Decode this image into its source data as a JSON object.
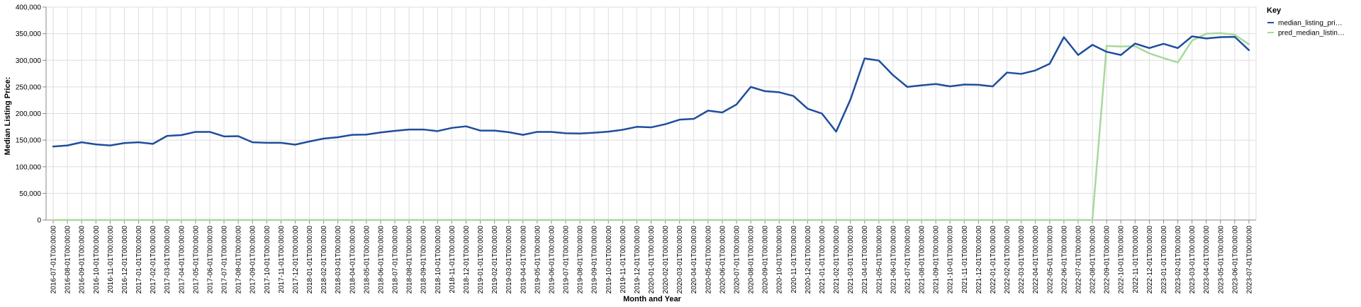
{
  "chart_data": {
    "type": "line",
    "xlabel": "Month and Year",
    "ylabel": "Median Listing Price:",
    "ylim": [
      0,
      400000
    ],
    "y_ticks": [
      "0",
      "50,000",
      "100,000",
      "150,000",
      "200,000",
      "250,000",
      "300,000",
      "350,000",
      "400,000"
    ],
    "grid": true,
    "legend": {
      "title": "Key",
      "position": "right",
      "entries": [
        "median_listing_pri…",
        "pred_median_listin…"
      ]
    },
    "x": [
      "2016-07-01T00:00:00",
      "2016-08-01T00:00:00",
      "2016-09-01T00:00:00",
      "2016-10-01T00:00:00",
      "2016-11-01T00:00:00",
      "2016-12-01T00:00:00",
      "2017-01-01T00:00:00",
      "2017-02-01T00:00:00",
      "2017-03-01T00:00:00",
      "2017-04-01T00:00:00",
      "2017-05-01T00:00:00",
      "2017-06-01T00:00:00",
      "2017-07-01T00:00:00",
      "2017-08-01T00:00:00",
      "2017-09-01T00:00:00",
      "2017-10-01T00:00:00",
      "2017-11-01T00:00:00",
      "2017-12-01T00:00:00",
      "2018-01-01T00:00:00",
      "2018-02-01T00:00:00",
      "2018-03-01T00:00:00",
      "2018-04-01T00:00:00",
      "2018-05-01T00:00:00",
      "2018-06-01T00:00:00",
      "2018-07-01T00:00:00",
      "2018-08-01T00:00:00",
      "2018-09-01T00:00:00",
      "2018-10-01T00:00:00",
      "2018-11-01T00:00:00",
      "2018-12-01T00:00:00",
      "2019-01-01T00:00:00",
      "2019-02-01T00:00:00",
      "2019-03-01T00:00:00",
      "2019-04-01T00:00:00",
      "2019-05-01T00:00:00",
      "2019-06-01T00:00:00",
      "2019-07-01T00:00:00",
      "2019-08-01T00:00:00",
      "2019-09-01T00:00:00",
      "2019-10-01T00:00:00",
      "2019-11-01T00:00:00",
      "2019-12-01T00:00:00",
      "2020-01-01T00:00:00",
      "2020-02-01T00:00:00",
      "2020-03-01T00:00:00",
      "2020-04-01T00:00:00",
      "2020-05-01T00:00:00",
      "2020-06-01T00:00:00",
      "2020-07-01T00:00:00",
      "2020-08-01T00:00:00",
      "2020-09-01T00:00:00",
      "2020-10-01T00:00:00",
      "2020-11-01T00:00:00",
      "2020-12-01T00:00:00",
      "2021-01-01T00:00:00",
      "2021-02-01T00:00:00",
      "2021-03-01T00:00:00",
      "2021-04-01T00:00:00",
      "2021-05-01T00:00:00",
      "2021-06-01T00:00:00",
      "2021-07-01T00:00:00",
      "2021-08-01T00:00:00",
      "2021-09-01T00:00:00",
      "2021-10-01T00:00:00",
      "2021-11-01T00:00:00",
      "2021-12-01T00:00:00",
      "2022-01-01T00:00:00",
      "2022-02-01T00:00:00",
      "2022-03-01T00:00:00",
      "2022-04-01T00:00:00",
      "2022-05-01T00:00:00",
      "2022-06-01T00:00:00",
      "2022-07-01T00:00:00",
      "2022-08-01T00:00:00",
      "2022-09-01T00:00:00",
      "2022-10-01T00:00:00",
      "2022-11-01T00:00:00",
      "2022-12-01T00:00:00",
      "2023-01-01T00:00:00",
      "2023-02-01T00:00:00",
      "2023-03-01T00:00:00",
      "2023-04-01T00:00:00",
      "2023-05-01T00:00:00",
      "2023-06-01T00:00:00",
      "2023-07-01T00:00:00"
    ],
    "series": [
      {
        "name": "median_listing_pri…",
        "color": "#1f4e9c",
        "values": [
          138000,
          140000,
          146000,
          142000,
          140000,
          144500,
          146000,
          143000,
          158000,
          159500,
          165500,
          165500,
          157000,
          157500,
          146000,
          145000,
          145000,
          141500,
          147500,
          153000,
          155500,
          160000,
          160500,
          164500,
          167500,
          170000,
          170000,
          167000,
          173000,
          176000,
          168000,
          168000,
          165000,
          160000,
          165500,
          165500,
          163000,
          162500,
          164000,
          166000,
          169500,
          175000,
          174000,
          180000,
          188500,
          190000,
          205500,
          202000,
          217000,
          250000,
          242000,
          240000,
          233000,
          209000,
          200000,
          166000,
          226000,
          303500,
          299500,
          272000,
          250000,
          253000,
          255500,
          251000,
          254500,
          254000,
          251000,
          277000,
          274500,
          281000,
          293500,
          343500,
          310000,
          329000,
          316000,
          310000,
          331500,
          323000,
          331000,
          323000,
          345000,
          341000,
          343500,
          344000,
          319000
        ]
      },
      {
        "name": "pred_median_listin…",
        "color": "#a8d99c",
        "values": [
          0,
          0,
          0,
          0,
          0,
          0,
          0,
          0,
          0,
          0,
          0,
          0,
          0,
          0,
          0,
          0,
          0,
          0,
          0,
          0,
          0,
          0,
          0,
          0,
          0,
          0,
          0,
          0,
          0,
          0,
          0,
          0,
          0,
          0,
          0,
          0,
          0,
          0,
          0,
          0,
          0,
          0,
          0,
          0,
          0,
          0,
          0,
          0,
          0,
          0,
          0,
          0,
          0,
          0,
          0,
          0,
          0,
          0,
          0,
          0,
          0,
          0,
          0,
          0,
          0,
          0,
          0,
          0,
          0,
          0,
          0,
          0,
          0,
          0,
          327000,
          326000,
          326500,
          313000,
          304000,
          296000,
          337000,
          350000,
          351000,
          348000,
          330000
        ]
      }
    ]
  }
}
